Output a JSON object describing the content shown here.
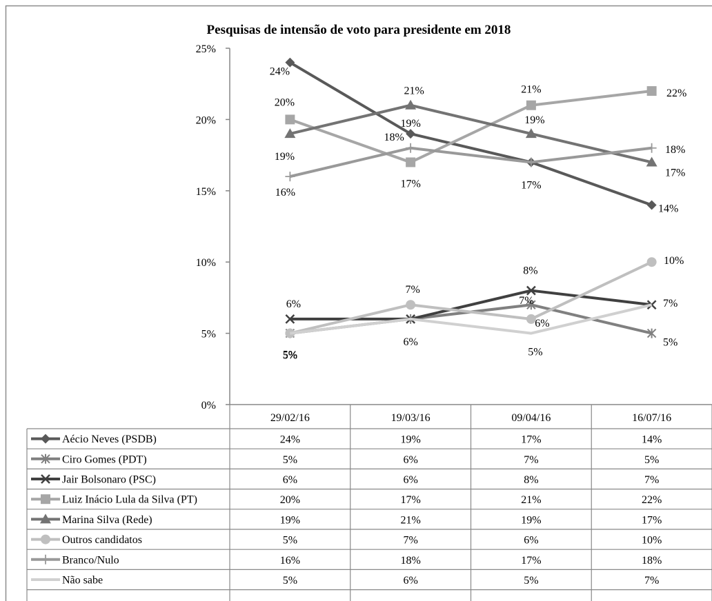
{
  "chart_data": {
    "type": "line",
    "title": "Pesquisas de intensão de voto para presidente em 2018",
    "categories": [
      "29/02/16",
      "19/03/16",
      "09/04/16",
      "16/07/16"
    ],
    "ylim": [
      0,
      25
    ],
    "y_ticks": [
      "0%",
      "5%",
      "10%",
      "15%",
      "20%",
      "25%"
    ],
    "grid": false,
    "legend": "data-table-below",
    "series": [
      {
        "name": "Aécio Neves (PSDB)",
        "values": [
          24,
          19,
          17,
          14
        ],
        "labels": [
          "24%",
          "19%",
          "17%",
          "14%"
        ],
        "color": "#595959",
        "marker": "diamond"
      },
      {
        "name": "Ciro Gomes (PDT)",
        "values": [
          5,
          6,
          7,
          5
        ],
        "labels": [
          "5%",
          "6%",
          "7%",
          "5%"
        ],
        "color": "#808080",
        "marker": "star"
      },
      {
        "name": "Jair Bolsonaro (PSC)",
        "values": [
          6,
          6,
          8,
          7
        ],
        "labels": [
          "6%",
          "6%",
          "8%",
          "7%"
        ],
        "color": "#404040",
        "marker": "x"
      },
      {
        "name": "Luiz Inácio Lula da Silva (PT)",
        "values": [
          20,
          17,
          21,
          22
        ],
        "labels": [
          "20%",
          "17%",
          "21%",
          "22%"
        ],
        "color": "#a6a6a6",
        "marker": "square"
      },
      {
        "name": "Marina Silva (Rede)",
        "values": [
          19,
          21,
          19,
          17
        ],
        "labels": [
          "19%",
          "21%",
          "19%",
          "17%"
        ],
        "color": "#737373",
        "marker": "triangle"
      },
      {
        "name": "Outros candidatos",
        "values": [
          5,
          7,
          6,
          10
        ],
        "labels": [
          "5%",
          "7%",
          "6%",
          "10%"
        ],
        "color": "#bfbfbf",
        "marker": "circle"
      },
      {
        "name": "Branco/Nulo",
        "values": [
          16,
          18,
          17,
          18
        ],
        "labels": [
          "16%",
          "18%",
          "17%",
          "18%"
        ],
        "color": "#999999",
        "marker": "plus"
      },
      {
        "name": "Não sabe",
        "values": [
          5,
          6,
          5,
          7
        ],
        "labels": [
          "5%",
          "6%",
          "5%",
          "7%"
        ],
        "color": "#d0d0d0",
        "marker": "none"
      }
    ]
  }
}
